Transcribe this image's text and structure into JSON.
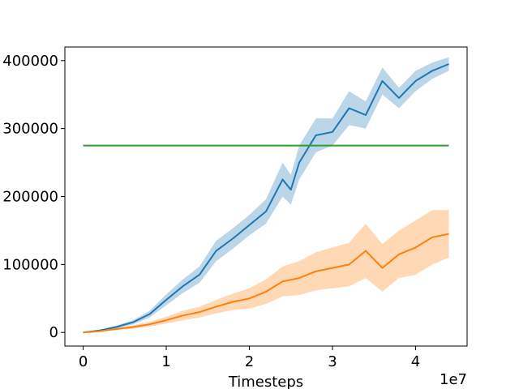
{
  "chart_data": {
    "type": "line",
    "xlabel": "Timesteps",
    "x_offset_text": "1e7",
    "xlim": [
      -0.22,
      4.62
    ],
    "ylim": [
      -20000,
      420000
    ],
    "x_ticks": [
      0,
      1,
      2,
      3,
      4
    ],
    "x_tick_labels": [
      "0",
      "1",
      "2",
      "3",
      "4"
    ],
    "y_ticks": [
      0,
      100000,
      200000,
      300000,
      400000
    ],
    "y_tick_labels": [
      "0",
      "100000",
      "200000",
      "300000",
      "400000"
    ],
    "colors": {
      "blue": "#1f77b4",
      "orange": "#ff7f0e",
      "green": "#2ca02c",
      "axis": "#000000"
    },
    "series": [
      {
        "color": "blue",
        "x": [
          0,
          0.2,
          0.4,
          0.6,
          0.8,
          1.0,
          1.2,
          1.4,
          1.6,
          1.8,
          2.0,
          2.2,
          2.4,
          2.5,
          2.6,
          2.8,
          3.0,
          3.2,
          3.4,
          3.6,
          3.8,
          4.0,
          4.2,
          4.4
        ],
        "y": [
          0,
          3000,
          8000,
          15000,
          27000,
          48000,
          68000,
          85000,
          120000,
          138000,
          158000,
          178000,
          225000,
          210000,
          250000,
          290000,
          295000,
          330000,
          320000,
          370000,
          345000,
          370000,
          385000,
          395000
        ],
        "band": [
          0,
          800,
          2000,
          3000,
          5000,
          8000,
          10000,
          12000,
          15000,
          15000,
          15000,
          18000,
          25000,
          22000,
          25000,
          25000,
          20000,
          25000,
          20000,
          20000,
          15000,
          15000,
          12000,
          10000
        ]
      },
      {
        "color": "orange",
        "x": [
          0,
          0.2,
          0.4,
          0.6,
          0.8,
          1.0,
          1.2,
          1.4,
          1.6,
          1.8,
          2.0,
          2.2,
          2.4,
          2.6,
          2.8,
          3.0,
          3.2,
          3.4,
          3.6,
          3.8,
          4.0,
          4.2,
          4.4
        ],
        "y": [
          0,
          2000,
          5000,
          8000,
          12000,
          18000,
          25000,
          30000,
          38000,
          45000,
          50000,
          60000,
          75000,
          80000,
          90000,
          95000,
          100000,
          120000,
          95000,
          115000,
          125000,
          140000,
          145000
        ],
        "band": [
          0,
          800,
          1500,
          2500,
          3500,
          5000,
          7000,
          8000,
          10000,
          12000,
          15000,
          18000,
          22000,
          25000,
          28000,
          30000,
          32000,
          40000,
          35000,
          35000,
          40000,
          40000,
          35000
        ]
      },
      {
        "color": "green",
        "x": [
          0,
          4.4
        ],
        "y": [
          275000,
          275000
        ]
      }
    ]
  }
}
